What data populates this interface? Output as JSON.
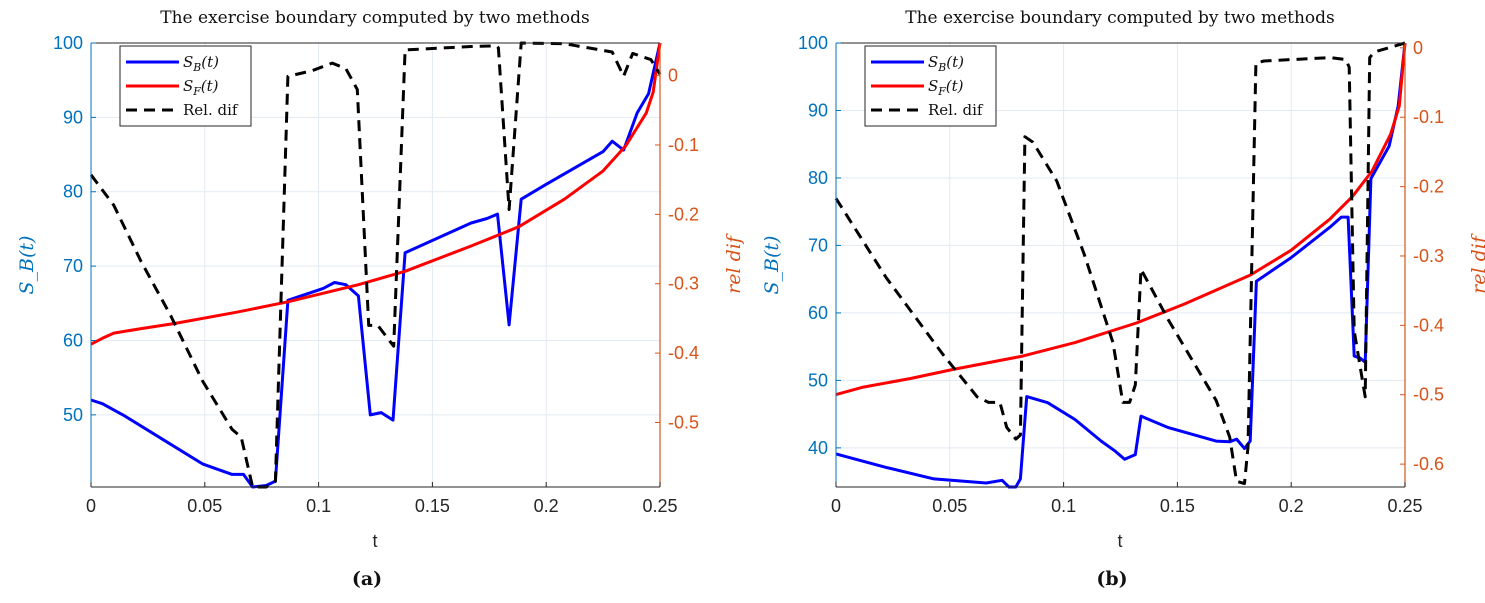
{
  "colors": {
    "left_axis": "#0072BD",
    "right_axis": "#D95319",
    "sb": "#0000FF",
    "sf": "#FF0000",
    "rel": "#000000",
    "grid": "#E3EAF2"
  },
  "chart_data": [
    {
      "type": "line",
      "caption": "(a)",
      "title": "The exercise boundary computed by two methods",
      "xlabel": "t",
      "ylabel": "S_B(t)",
      "ylabel_right": "rel dif",
      "xlim": [
        0,
        0.25
      ],
      "ylim": [
        40.3,
        100
      ],
      "ylim_right": [
        -0.593,
        0.047
      ],
      "xticks": [
        0,
        0.05,
        0.1,
        0.15,
        0.2,
        0.25
      ],
      "xtick_labels": [
        "0",
        "0.05",
        "0.1",
        "0.15",
        "0.2",
        "0.25"
      ],
      "yticks": [
        50,
        60,
        70,
        80,
        90,
        100
      ],
      "ytick_labels": [
        "50",
        "60",
        "70",
        "80",
        "90",
        "100"
      ],
      "yticks_right": [
        -0.5,
        -0.4,
        -0.3,
        -0.2,
        -0.1,
        0
      ],
      "ytick_labels_right": [
        "-0.5",
        "-0.4",
        "-0.3",
        "-0.2",
        "-0.1",
        "0"
      ],
      "grid": true,
      "legend_position": "top-left",
      "series": [
        {
          "name": "S_B(t)",
          "axis": "left",
          "style": "solid",
          "color_key": "sb",
          "x": [
            0,
            0.005,
            0.014,
            0.031,
            0.049,
            0.062,
            0.067,
            0.071,
            0.077,
            0.081,
            0.0865,
            0.102,
            0.107,
            0.112,
            0.1175,
            0.1227,
            0.1275,
            0.1327,
            0.138,
            0.167,
            0.174,
            0.1786,
            0.1837,
            0.189,
            0.2,
            0.225,
            0.229,
            0.234,
            0.24,
            0.245,
            0.25
          ],
          "y": [
            52,
            51.5,
            50,
            46.8,
            43.4,
            42,
            42,
            40.3,
            40.5,
            41.1,
            65.4,
            67,
            67.8,
            67.5,
            66,
            50,
            50.3,
            49.3,
            71.8,
            75.8,
            76.4,
            77,
            62.1,
            79,
            81,
            85.4,
            86.8,
            85.6,
            90.6,
            93.2,
            100
          ]
        },
        {
          "name": "S_F(t)",
          "axis": "left",
          "style": "solid",
          "color_key": "sf",
          "x": [
            0,
            0.005,
            0.01,
            0.022,
            0.037,
            0.064,
            0.0865,
            0.1175,
            0.138,
            0.167,
            0.188,
            0.208,
            0.225,
            0.235,
            0.244,
            0.247,
            0.25
          ],
          "y": [
            59.5,
            60.3,
            61,
            61.6,
            62.3,
            63.8,
            65.2,
            67.5,
            69.3,
            72.7,
            75.3,
            79,
            82.8,
            86.2,
            90.6,
            93.4,
            100
          ]
        },
        {
          "name": "Rel. dif",
          "axis": "right",
          "style": "dashed",
          "color_key": "rel",
          "x": [
            0,
            0.01,
            0.022,
            0.035,
            0.049,
            0.062,
            0.066,
            0.071,
            0.077,
            0.081,
            0.0865,
            0.097,
            0.106,
            0.112,
            0.117,
            0.122,
            0.126,
            0.133,
            0.138,
            0.155,
            0.167,
            0.178,
            0.179,
            0.1837,
            0.189,
            0.208,
            0.229,
            0.234,
            0.238,
            0.246,
            0.25
          ],
          "y": [
            -0.143,
            -0.187,
            -0.268,
            -0.346,
            -0.44,
            -0.51,
            -0.521,
            -0.593,
            -0.593,
            -0.585,
            -0.001,
            0.007,
            0.018,
            0.01,
            -0.02,
            -0.36,
            -0.36,
            -0.39,
            0.037,
            0.04,
            0.042,
            0.043,
            0.04,
            -0.193,
            0.047,
            0.046,
            0.034,
            -0.001,
            0.032,
            0.023,
            0.002
          ]
        }
      ]
    },
    {
      "type": "line",
      "caption": "(b)",
      "title": "The exercise boundary computed by two methods",
      "xlabel": "t",
      "ylabel": "S_B(t)",
      "ylabel_right": "rel dif",
      "xlim": [
        0,
        0.25
      ],
      "ylim": [
        34.2,
        100
      ],
      "ylim_right": [
        -0.633,
        0.007
      ],
      "xticks": [
        0,
        0.05,
        0.1,
        0.15,
        0.2,
        0.25
      ],
      "xtick_labels": [
        "0",
        "0.05",
        "0.1",
        "0.15",
        "0.2",
        "0.25"
      ],
      "yticks": [
        40,
        50,
        60,
        70,
        80,
        90,
        100
      ],
      "ytick_labels": [
        "40",
        "50",
        "60",
        "70",
        "80",
        "90",
        "100"
      ],
      "yticks_right": [
        -0.6,
        -0.5,
        -0.4,
        -0.3,
        -0.2,
        -0.1,
        0
      ],
      "ytick_labels_right": [
        "-0.6",
        "-0.5",
        "-0.4",
        "-0.3",
        "-0.2",
        "-0.1",
        "0"
      ],
      "grid": true,
      "legend_position": "top-left",
      "series": [
        {
          "name": "S_B(t)",
          "axis": "left",
          "style": "solid",
          "color_key": "sb",
          "x": [
            0,
            0.022,
            0.043,
            0.066,
            0.073,
            0.076,
            0.079,
            0.081,
            0.0838,
            0.093,
            0.105,
            0.1165,
            0.1227,
            0.1268,
            0.1315,
            0.134,
            0.146,
            0.167,
            0.173,
            0.176,
            0.1795,
            0.182,
            0.1847,
            0.2,
            0.217,
            0.222,
            0.225,
            0.2277,
            0.2303,
            0.2325,
            0.235,
            0.243,
            0.247,
            0.25
          ],
          "y": [
            39.1,
            37.1,
            35.4,
            34.8,
            35.2,
            34.2,
            34.2,
            35.4,
            47.6,
            46.7,
            44.2,
            41,
            39.5,
            38.3,
            39,
            44.7,
            43,
            41,
            40.9,
            41.3,
            39.9,
            41,
            64.7,
            68.2,
            72.7,
            74.2,
            74.2,
            53.6,
            53.3,
            52.7,
            79.9,
            84.7,
            90.7,
            100
          ]
        },
        {
          "name": "S_F(t)",
          "axis": "left",
          "style": "solid",
          "color_key": "sf",
          "x": [
            0,
            0.012,
            0.033,
            0.051,
            0.082,
            0.105,
            0.132,
            0.153,
            0.182,
            0.2,
            0.217,
            0.227,
            0.2355,
            0.2437,
            0.2475,
            0.25
          ],
          "y": [
            47.9,
            49,
            50.3,
            51.6,
            53.6,
            55.6,
            58.5,
            61.3,
            65.6,
            69.3,
            73.9,
            77.3,
            81,
            86.5,
            90.7,
            100
          ]
        },
        {
          "name": "Rel. dif",
          "axis": "right",
          "style": "dashed",
          "color_key": "rel",
          "x": [
            0,
            0.022,
            0.047,
            0.062,
            0.067,
            0.072,
            0.075,
            0.079,
            0.081,
            0.083,
            0.0865,
            0.097,
            0.109,
            0.1217,
            0.126,
            0.129,
            0.1315,
            0.134,
            0.146,
            0.167,
            0.173,
            0.176,
            0.1795,
            0.181,
            0.1845,
            0.188,
            0.217,
            0.224,
            0.2255,
            0.2277,
            0.2325,
            0.2345,
            0.2365,
            0.25
          ],
          "y": [
            -0.217,
            -0.331,
            -0.442,
            -0.503,
            -0.511,
            -0.511,
            -0.547,
            -0.564,
            -0.558,
            -0.128,
            -0.136,
            -0.192,
            -0.297,
            -0.425,
            -0.511,
            -0.511,
            -0.486,
            -0.319,
            -0.392,
            -0.508,
            -0.561,
            -0.625,
            -0.628,
            -0.575,
            -0.022,
            -0.019,
            -0.014,
            -0.017,
            -0.028,
            -0.408,
            -0.503,
            -0.014,
            -0.006,
            0.007
          ]
        }
      ]
    }
  ]
}
